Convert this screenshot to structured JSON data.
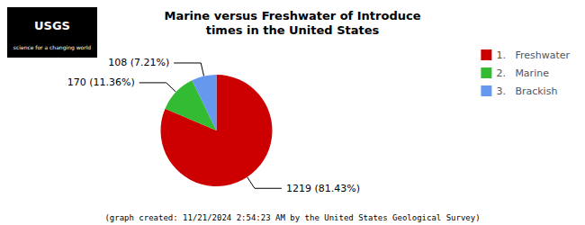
{
  "chart_data": {
    "type": "pie",
    "title": "Marine versus Freshwater of Introduce\ntimes in the United States",
    "categories": [
      "1.   Freshwater",
      "2.   Marine",
      "3.   Brackish"
    ],
    "values": [
      1219,
      170,
      108
    ],
    "value_labels": [
      "1219 (81.43%)",
      "170 (11.36%)",
      "108 (7.21%)"
    ],
    "data_labels": true,
    "colors": [
      "#cc0000",
      "#33bb33",
      "#6699ee"
    ],
    "legend": "upper right",
    "footer": "(graph created: 11/21/2024 2:54:23 AM by the United States Geological Survey)",
    "annotations": [
      "USGS",
      "science for a changing world"
    ]
  }
}
